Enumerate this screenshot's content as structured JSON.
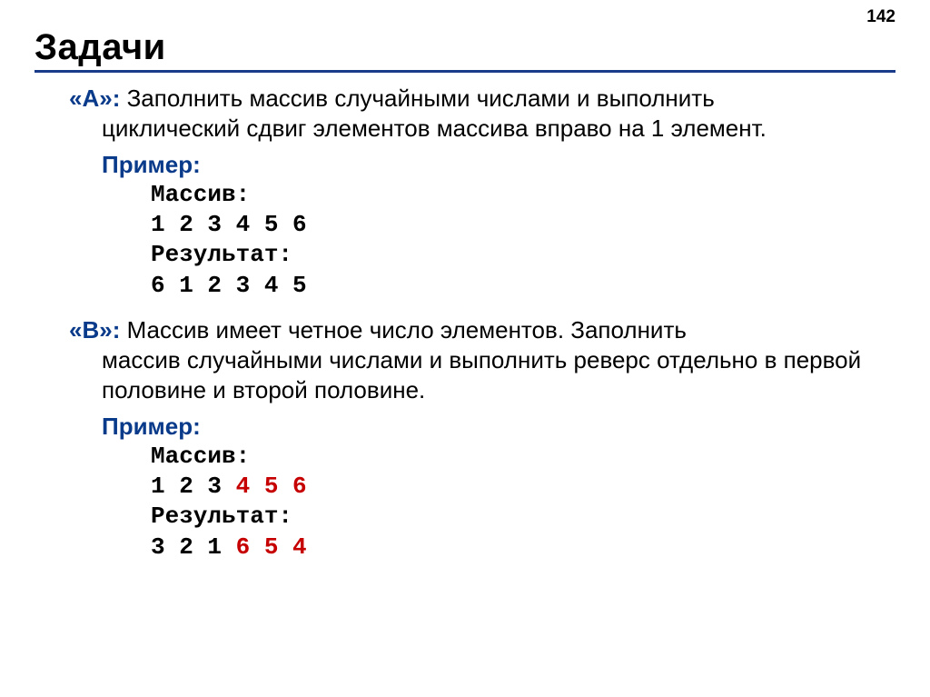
{
  "page_number": "142",
  "title": "Задачи",
  "colors": {
    "accent_blue": "#0a3a8a",
    "accent_red": "#c60000",
    "underline": "#1a3a8a",
    "text": "#000000",
    "background": "#ffffff"
  },
  "typography": {
    "title_fontsize": 40,
    "body_fontsize": 26,
    "code_fontfamily": "Courier New",
    "body_fontfamily": "Arial"
  },
  "tasks": [
    {
      "label": "«A»:",
      "description_line1": " Заполнить массив случайными числами и выполнить",
      "description_rest": "циклический сдвиг элементов массива вправо на 1 элемент.",
      "example_label": "Пример",
      "code": {
        "lines": [
          {
            "parts": [
              {
                "text": "Массив:",
                "red": false
              }
            ]
          },
          {
            "parts": [
              {
                "text": "1 2 3 4 5 6",
                "red": false
              }
            ]
          },
          {
            "parts": [
              {
                "text": "Результат:",
                "red": false
              }
            ]
          },
          {
            "parts": [
              {
                "text": "6 1 2 3 4 5",
                "red": false
              }
            ]
          }
        ]
      }
    },
    {
      "label": "«B»:",
      "description_line1": " Массив имеет четное число элементов. Заполнить",
      "description_rest": "массив случайными числами и выполнить реверс отдельно в первой половине и второй половине.",
      "example_label": "Пример",
      "code": {
        "lines": [
          {
            "parts": [
              {
                "text": "Массив:",
                "red": false
              }
            ]
          },
          {
            "parts": [
              {
                "text": "1 2 3 ",
                "red": false
              },
              {
                "text": "4 5 6",
                "red": true
              }
            ]
          },
          {
            "parts": [
              {
                "text": "Результат:",
                "red": false
              }
            ]
          },
          {
            "parts": [
              {
                "text": "3 2 1 ",
                "red": false
              },
              {
                "text": "6 5 4",
                "red": true
              }
            ]
          }
        ]
      }
    }
  ]
}
